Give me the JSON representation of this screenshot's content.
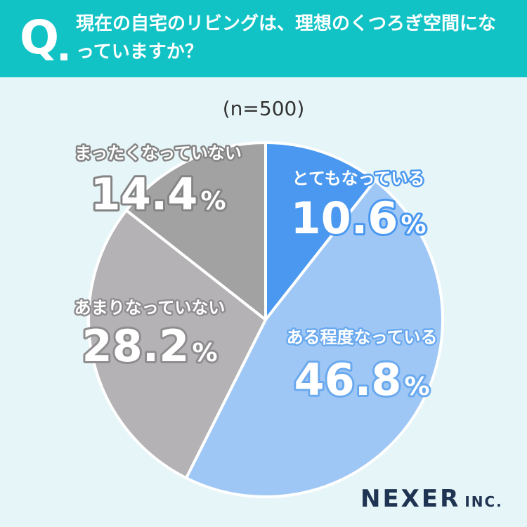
{
  "header": {
    "q_mark": "Q",
    "question": "現在の自宅のリビングは、理想のくつろぎ空間になっていますか？"
  },
  "sample_size": "(n=500)",
  "logo": {
    "main": "NEXER",
    "suffix": "INC."
  },
  "colors": {
    "header": "#12c3c6",
    "background": "#e6f5f7",
    "slice_1": "#4a98f0",
    "slice_2": "#9fc7f6",
    "slice_3": "#b4b2b4",
    "slice_4": "#a3a2a3"
  },
  "chart_data": {
    "type": "pie",
    "start": "12 o'clock, clockwise",
    "slices": [
      {
        "label": "とてもなっている",
        "value": 10.6,
        "display": "10.6",
        "color": "#4a98f0",
        "text_color": "#ffffff",
        "outline_color": "#4a98f0"
      },
      {
        "label": "ある程度なっている",
        "value": 46.8,
        "display": "46.8",
        "color": "#9fc7f6",
        "text_color": "#ffffff",
        "outline_color": "#6aa9ee"
      },
      {
        "label": "あまりなっていない",
        "value": 28.2,
        "display": "28.2",
        "color": "#b4b2b4",
        "text_color": "#ffffff",
        "outline_color": "#8f8d8f"
      },
      {
        "label": "まったくなっていない",
        "value": 14.4,
        "display": "14.4",
        "color": "#a3a2a3",
        "text_color": "#ffffff",
        "outline_color": "#858485"
      }
    ],
    "unit": "%"
  }
}
